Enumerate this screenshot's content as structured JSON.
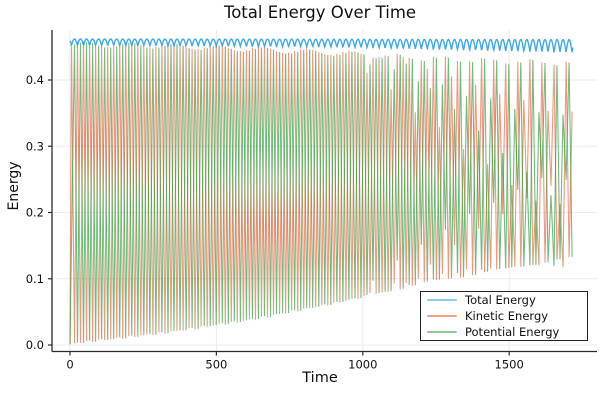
{
  "chart_data": {
    "type": "line",
    "title": "Total Energy Over Time",
    "xlabel": "Time",
    "ylabel": "Energy",
    "x_ticks": [
      0,
      500,
      1000,
      1500
    ],
    "x_tick_labels": [
      "0",
      "500",
      "1000",
      "1500"
    ],
    "y_ticks": [
      0.0,
      0.1,
      0.2,
      0.3,
      0.4
    ],
    "y_tick_labels": [
      "0.0",
      "0.1",
      "0.2",
      "0.3",
      "0.4"
    ],
    "xlim": [
      -60,
      1800
    ],
    "ylim": [
      -0.022,
      0.485
    ],
    "t_max": 1718,
    "oscillation_period": 20.6,
    "grid": true,
    "legend_position": "lower right",
    "series": [
      {
        "name": "Total Energy",
        "color": "#2ba0e0",
        "opacity": 0.9,
        "model": {
          "kind": "scallop",
          "phase": 5,
          "base_keyframes": [
            [
              0,
              0.4525
            ],
            [
              900,
              0.4495
            ],
            [
              1718,
              0.441
            ]
          ],
          "amp_keyframes": [
            [
              0,
              0.0095
            ],
            [
              900,
              0.012
            ],
            [
              1718,
              0.02
            ]
          ]
        }
      },
      {
        "name": "Kinetic Energy",
        "color": "#e2572b",
        "opacity": 0.6,
        "model": {
          "kind": "spike-train",
          "phase": 5,
          "pattern": [
            "full",
            "low",
            "full",
            "high"
          ],
          "upper_keyframes": [
            [
              0,
              0.4545
            ],
            [
              300,
              0.4525
            ],
            [
              600,
              0.4475
            ],
            [
              900,
              0.4415
            ],
            [
              1200,
              0.4335
            ],
            [
              1500,
              0.4285
            ],
            [
              1718,
              0.426
            ]
          ],
          "lower_keyframes": [
            [
              0,
              0.001
            ],
            [
              300,
              0.016
            ],
            [
              600,
              0.036
            ],
            [
              900,
              0.062
            ],
            [
              1200,
              0.092
            ],
            [
              1500,
              0.115
            ],
            [
              1718,
              0.131
            ]
          ],
          "bands": {
            "high": {
              "top": 0.347,
              "bottom": 0.253,
              "ramp": [
                1120,
                1680
              ]
            },
            "low": {
              "top": 0.207,
              "bottom": 0.117,
              "ramp": [
                940,
                1600
              ]
            }
          }
        }
      },
      {
        "name": "Potential Energy",
        "color": "#2e9d40",
        "opacity": 0.68,
        "model": {
          "kind": "spike-train",
          "phase": 15.3,
          "pattern": [
            "full",
            "high",
            "full",
            "low"
          ],
          "upper_keyframes": [
            [
              0,
              0.4535
            ],
            [
              300,
              0.4515
            ],
            [
              600,
              0.4465
            ],
            [
              900,
              0.4405
            ],
            [
              1200,
              0.4325
            ],
            [
              1500,
              0.4275
            ],
            [
              1718,
              0.425
            ]
          ],
          "lower_keyframes": [
            [
              0,
              0.001
            ],
            [
              300,
              0.016
            ],
            [
              600,
              0.036
            ],
            [
              900,
              0.062
            ],
            [
              1200,
              0.092
            ],
            [
              1500,
              0.115
            ],
            [
              1718,
              0.131
            ]
          ],
          "bands": {
            "high": {
              "top": 0.347,
              "bottom": 0.253,
              "ramp": [
                940,
                1600
              ]
            },
            "low": {
              "top": 0.207,
              "bottom": 0.117,
              "ramp": [
                1120,
                1680
              ]
            }
          }
        }
      }
    ],
    "axis_color": "#2b2b2b",
    "grid_color": "#ebebeb",
    "tick_label_color": "#111111"
  }
}
